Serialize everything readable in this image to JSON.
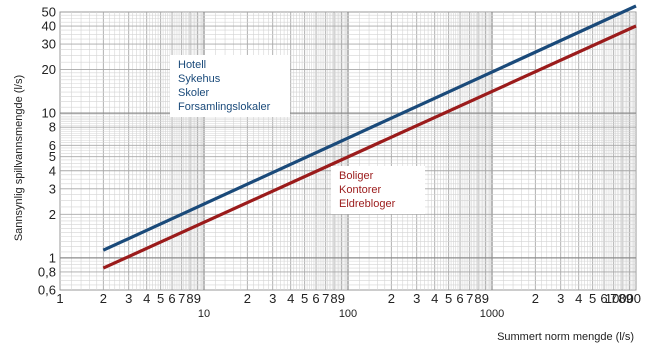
{
  "chart_data": {
    "type": "line",
    "xscale": "log",
    "yscale": "log",
    "xlim": [
      1,
      10000
    ],
    "ylim": [
      0.6,
      50
    ],
    "grid": true,
    "xlabel": "Summert norm mengde (l/s)",
    "ylabel": "Sannsynlig spillvannsmengde (l/s)",
    "y_ticks": [
      {
        "value": 0.6,
        "label": "0,6"
      },
      {
        "value": 0.8,
        "label": "0,8"
      },
      {
        "value": 1,
        "label": "1"
      },
      {
        "value": 2,
        "label": "2"
      },
      {
        "value": 3,
        "label": "3"
      },
      {
        "value": 4,
        "label": "4"
      },
      {
        "value": 5,
        "label": "5"
      },
      {
        "value": 6,
        "label": "6"
      },
      {
        "value": 8,
        "label": "8"
      },
      {
        "value": 10,
        "label": "10"
      },
      {
        "value": 20,
        "label": "20"
      },
      {
        "value": 30,
        "label": "30"
      },
      {
        "value": 40,
        "label": "40"
      },
      {
        "value": 50,
        "label": "50"
      }
    ],
    "x_ticks": [
      {
        "value": 1,
        "label": "1"
      },
      {
        "value": 2,
        "label": "2"
      },
      {
        "value": 3,
        "label": "3"
      },
      {
        "value": 4,
        "label": "4"
      },
      {
        "value": 5,
        "label": "5"
      },
      {
        "value": 6,
        "label": "6"
      },
      {
        "value": 7,
        "label": "7"
      },
      {
        "value": 8,
        "label": "8"
      },
      {
        "value": 9,
        "label": "9"
      },
      {
        "value": 20,
        "label": "2"
      },
      {
        "value": 30,
        "label": "3"
      },
      {
        "value": 40,
        "label": "4"
      },
      {
        "value": 50,
        "label": "5"
      },
      {
        "value": 60,
        "label": "6"
      },
      {
        "value": 70,
        "label": "7"
      },
      {
        "value": 80,
        "label": "8"
      },
      {
        "value": 90,
        "label": "9"
      },
      {
        "value": 200,
        "label": "2"
      },
      {
        "value": 300,
        "label": "3"
      },
      {
        "value": 400,
        "label": "4"
      },
      {
        "value": 500,
        "label": "5"
      },
      {
        "value": 600,
        "label": "6"
      },
      {
        "value": 700,
        "label": "7"
      },
      {
        "value": 800,
        "label": "8"
      },
      {
        "value": 900,
        "label": "9"
      },
      {
        "value": 2000,
        "label": "2"
      },
      {
        "value": 3000,
        "label": "3"
      },
      {
        "value": 4000,
        "label": "4"
      },
      {
        "value": 5000,
        "label": "5"
      },
      {
        "value": 6000,
        "label": "6"
      },
      {
        "value": 7000,
        "label": "7"
      },
      {
        "value": 8000,
        "label": "8"
      },
      {
        "value": 9000,
        "label": "9"
      }
    ],
    "x_decade_ticks": [
      {
        "value": 10,
        "label": "10"
      },
      {
        "value": 100,
        "label": "100"
      },
      {
        "value": 1000,
        "label": "1000"
      },
      {
        "value": 10000,
        "label": "10000"
      }
    ],
    "series": [
      {
        "color": "#1a4a7a",
        "x": [
          2,
          10000
        ],
        "y": [
          1.13,
          55
        ],
        "legend_lines": [
          "Hotell",
          "Sykehus",
          "Skoler",
          "Forsamlingslokaler"
        ]
      },
      {
        "color": "#9b1b1b",
        "x": [
          2,
          10000
        ],
        "y": [
          0.85,
          40
        ],
        "legend_lines": [
          "Boliger",
          "Kontorer",
          "Eldrebloger"
        ]
      }
    ]
  }
}
